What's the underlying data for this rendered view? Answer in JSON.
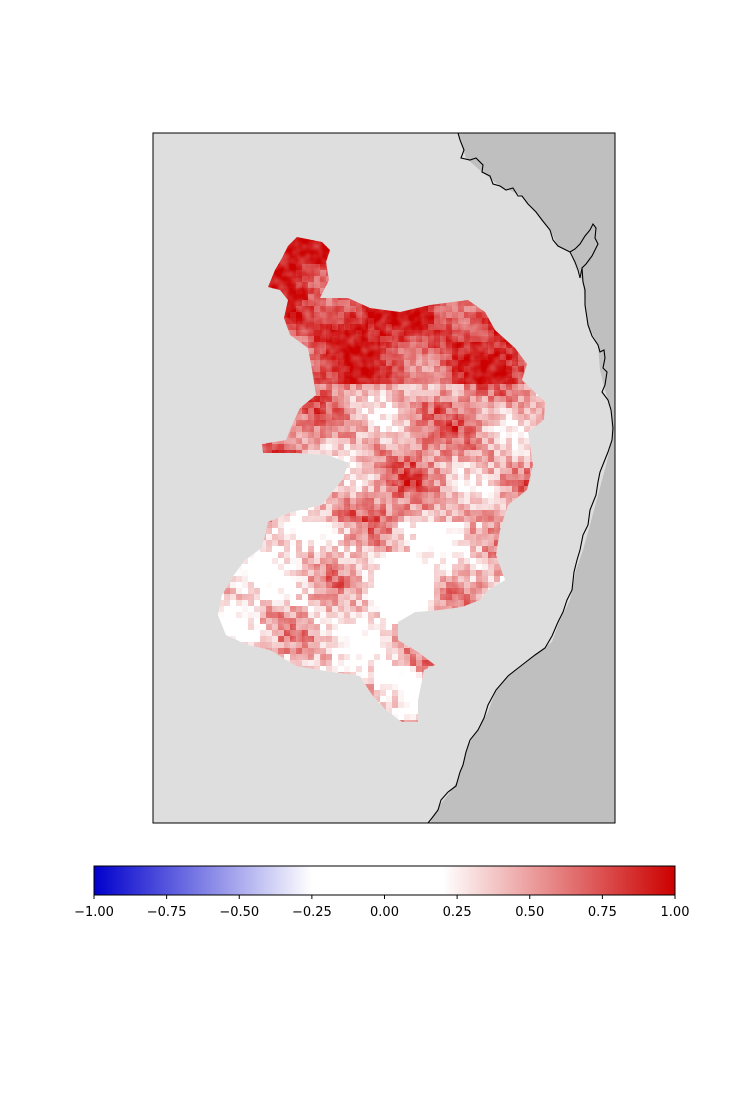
{
  "map": {
    "colors": {
      "land": "#dedede",
      "sea": "#bfbfbf",
      "coastline": "#000000",
      "frame": "#000000"
    }
  },
  "chart_data": {
    "type": "heatmap",
    "title": "",
    "xlabel": "",
    "ylabel": "",
    "colorbar": {
      "orientation": "horizontal",
      "placement": "bottom",
      "range": [
        -1.0,
        1.0
      ],
      "ticks": [
        -1.0,
        -0.75,
        -0.5,
        -0.25,
        0.0,
        0.25,
        0.5,
        0.75,
        1.0
      ],
      "tick_labels": [
        "−1.00",
        "−0.75",
        "−0.50",
        "−0.25",
        "0.00",
        "0.25",
        "0.50",
        "0.75",
        "1.00"
      ],
      "colormap": [
        {
          "v": -1.0,
          "color": "#0000cc"
        },
        {
          "v": -0.25,
          "color": "#ffffff"
        },
        {
          "v": 0.2,
          "color": "#ffffff"
        },
        {
          "v": 1.0,
          "color": "#cc0000"
        }
      ]
    },
    "field": {
      "value_range_shown": [
        0.0,
        1.0
      ],
      "peak_region": "northern portion of the basin (values near 1.00)",
      "low_region": "south-central and southern portions (values near 0.00)"
    }
  }
}
